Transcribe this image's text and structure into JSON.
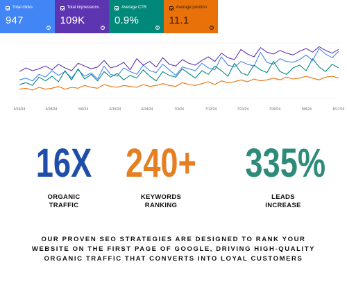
{
  "metrics": [
    {
      "label": "Total clicks",
      "value": "947",
      "color": "#4285f4"
    },
    {
      "label": "Total impressions",
      "value": "109K",
      "color": "#5e35b1"
    },
    {
      "label": "Average CTR",
      "value": "0.9%",
      "color": "#00897b"
    },
    {
      "label": "Average position",
      "value": "11.1",
      "color": "#e8710a"
    }
  ],
  "chart_data": {
    "type": "line",
    "x_tick_labels": [
      "5/19/24",
      "5/28/24",
      "6/6/24",
      "6/15/24",
      "6/24/24",
      "7/3/24",
      "7/12/24",
      "7/21/24",
      "7/30/24",
      "8/8/24",
      "8/17/24"
    ],
    "series": [
      {
        "color": "#4285f4",
        "values": [
          40,
          44,
          38,
          52,
          46,
          60,
          50,
          58,
          44,
          62,
          48,
          55,
          42,
          70,
          52,
          48,
          66,
          58,
          52,
          72,
          60,
          56,
          74,
          62,
          50,
          68,
          64,
          60,
          76,
          66,
          62,
          90,
          72,
          68,
          80,
          74,
          70,
          100,
          78,
          74,
          86,
          80,
          78,
          84,
          94,
          82,
          108,
          96,
          88,
          102
        ]
      },
      {
        "color": "#5e35b1",
        "values": [
          58,
          66,
          60,
          64,
          70,
          62,
          74,
          66,
          60,
          76,
          70,
          64,
          68,
          82,
          66,
          70,
          78,
          62,
          86,
          72,
          80,
          68,
          88,
          74,
          70,
          84,
          76,
          72,
          82,
          90,
          80,
          98,
          88,
          84,
          106,
          96,
          90,
          110,
          100,
          96,
          104,
          98,
          94,
          102,
          108,
          100,
          112,
          104,
          98,
          106
        ]
      },
      {
        "color": "#00897b",
        "values": [
          30,
          34,
          28,
          46,
          38,
          48,
          36,
          60,
          40,
          64,
          42,
          52,
          38,
          58,
          46,
          54,
          40,
          50,
          44,
          62,
          48,
          38,
          58,
          50,
          46,
          64,
          54,
          44,
          60,
          52,
          70,
          60,
          48,
          76,
          56,
          50,
          72,
          62,
          56,
          80,
          58,
          52,
          66,
          72,
          60,
          86,
          68,
          58,
          74,
          66
        ]
      },
      {
        "color": "#e8710a",
        "values": [
          20,
          22,
          18,
          24,
          20,
          22,
          26,
          20,
          24,
          22,
          28,
          24,
          22,
          30,
          26,
          24,
          28,
          26,
          24,
          30,
          26,
          28,
          32,
          28,
          26,
          34,
          30,
          28,
          32,
          36,
          30,
          38,
          34,
          36,
          40,
          36,
          42,
          38,
          40,
          44,
          40,
          46,
          42,
          44,
          48,
          44,
          40,
          46,
          48,
          44
        ]
      }
    ],
    "ylim": [
      0,
      120
    ]
  },
  "stats": [
    {
      "value": "16X",
      "label_line1": "ORGANIC",
      "label_line2": "TRAFFIC",
      "color": "#1e4ea8"
    },
    {
      "value": "240+",
      "label_line1": "KEYWORDS",
      "label_line2": "RANKING",
      "color": "#e67e22"
    },
    {
      "value": "335%",
      "label_line1": "LEADS",
      "label_line2": "INCREASE",
      "color": "#2e8b7a"
    }
  ],
  "tagline": {
    "line1": "OUR PROVEN SEO STRATEGIES ARE DESIGNED TO RANK YOUR",
    "line2": "WEBSITE ON THE FIRST PAGE OF GOOGLE, DRIVING HIGH-QUALITY",
    "line3": "ORGANIC TRAFFIC THAT CONVERTS INTO LOYAL CUSTOMERS"
  }
}
